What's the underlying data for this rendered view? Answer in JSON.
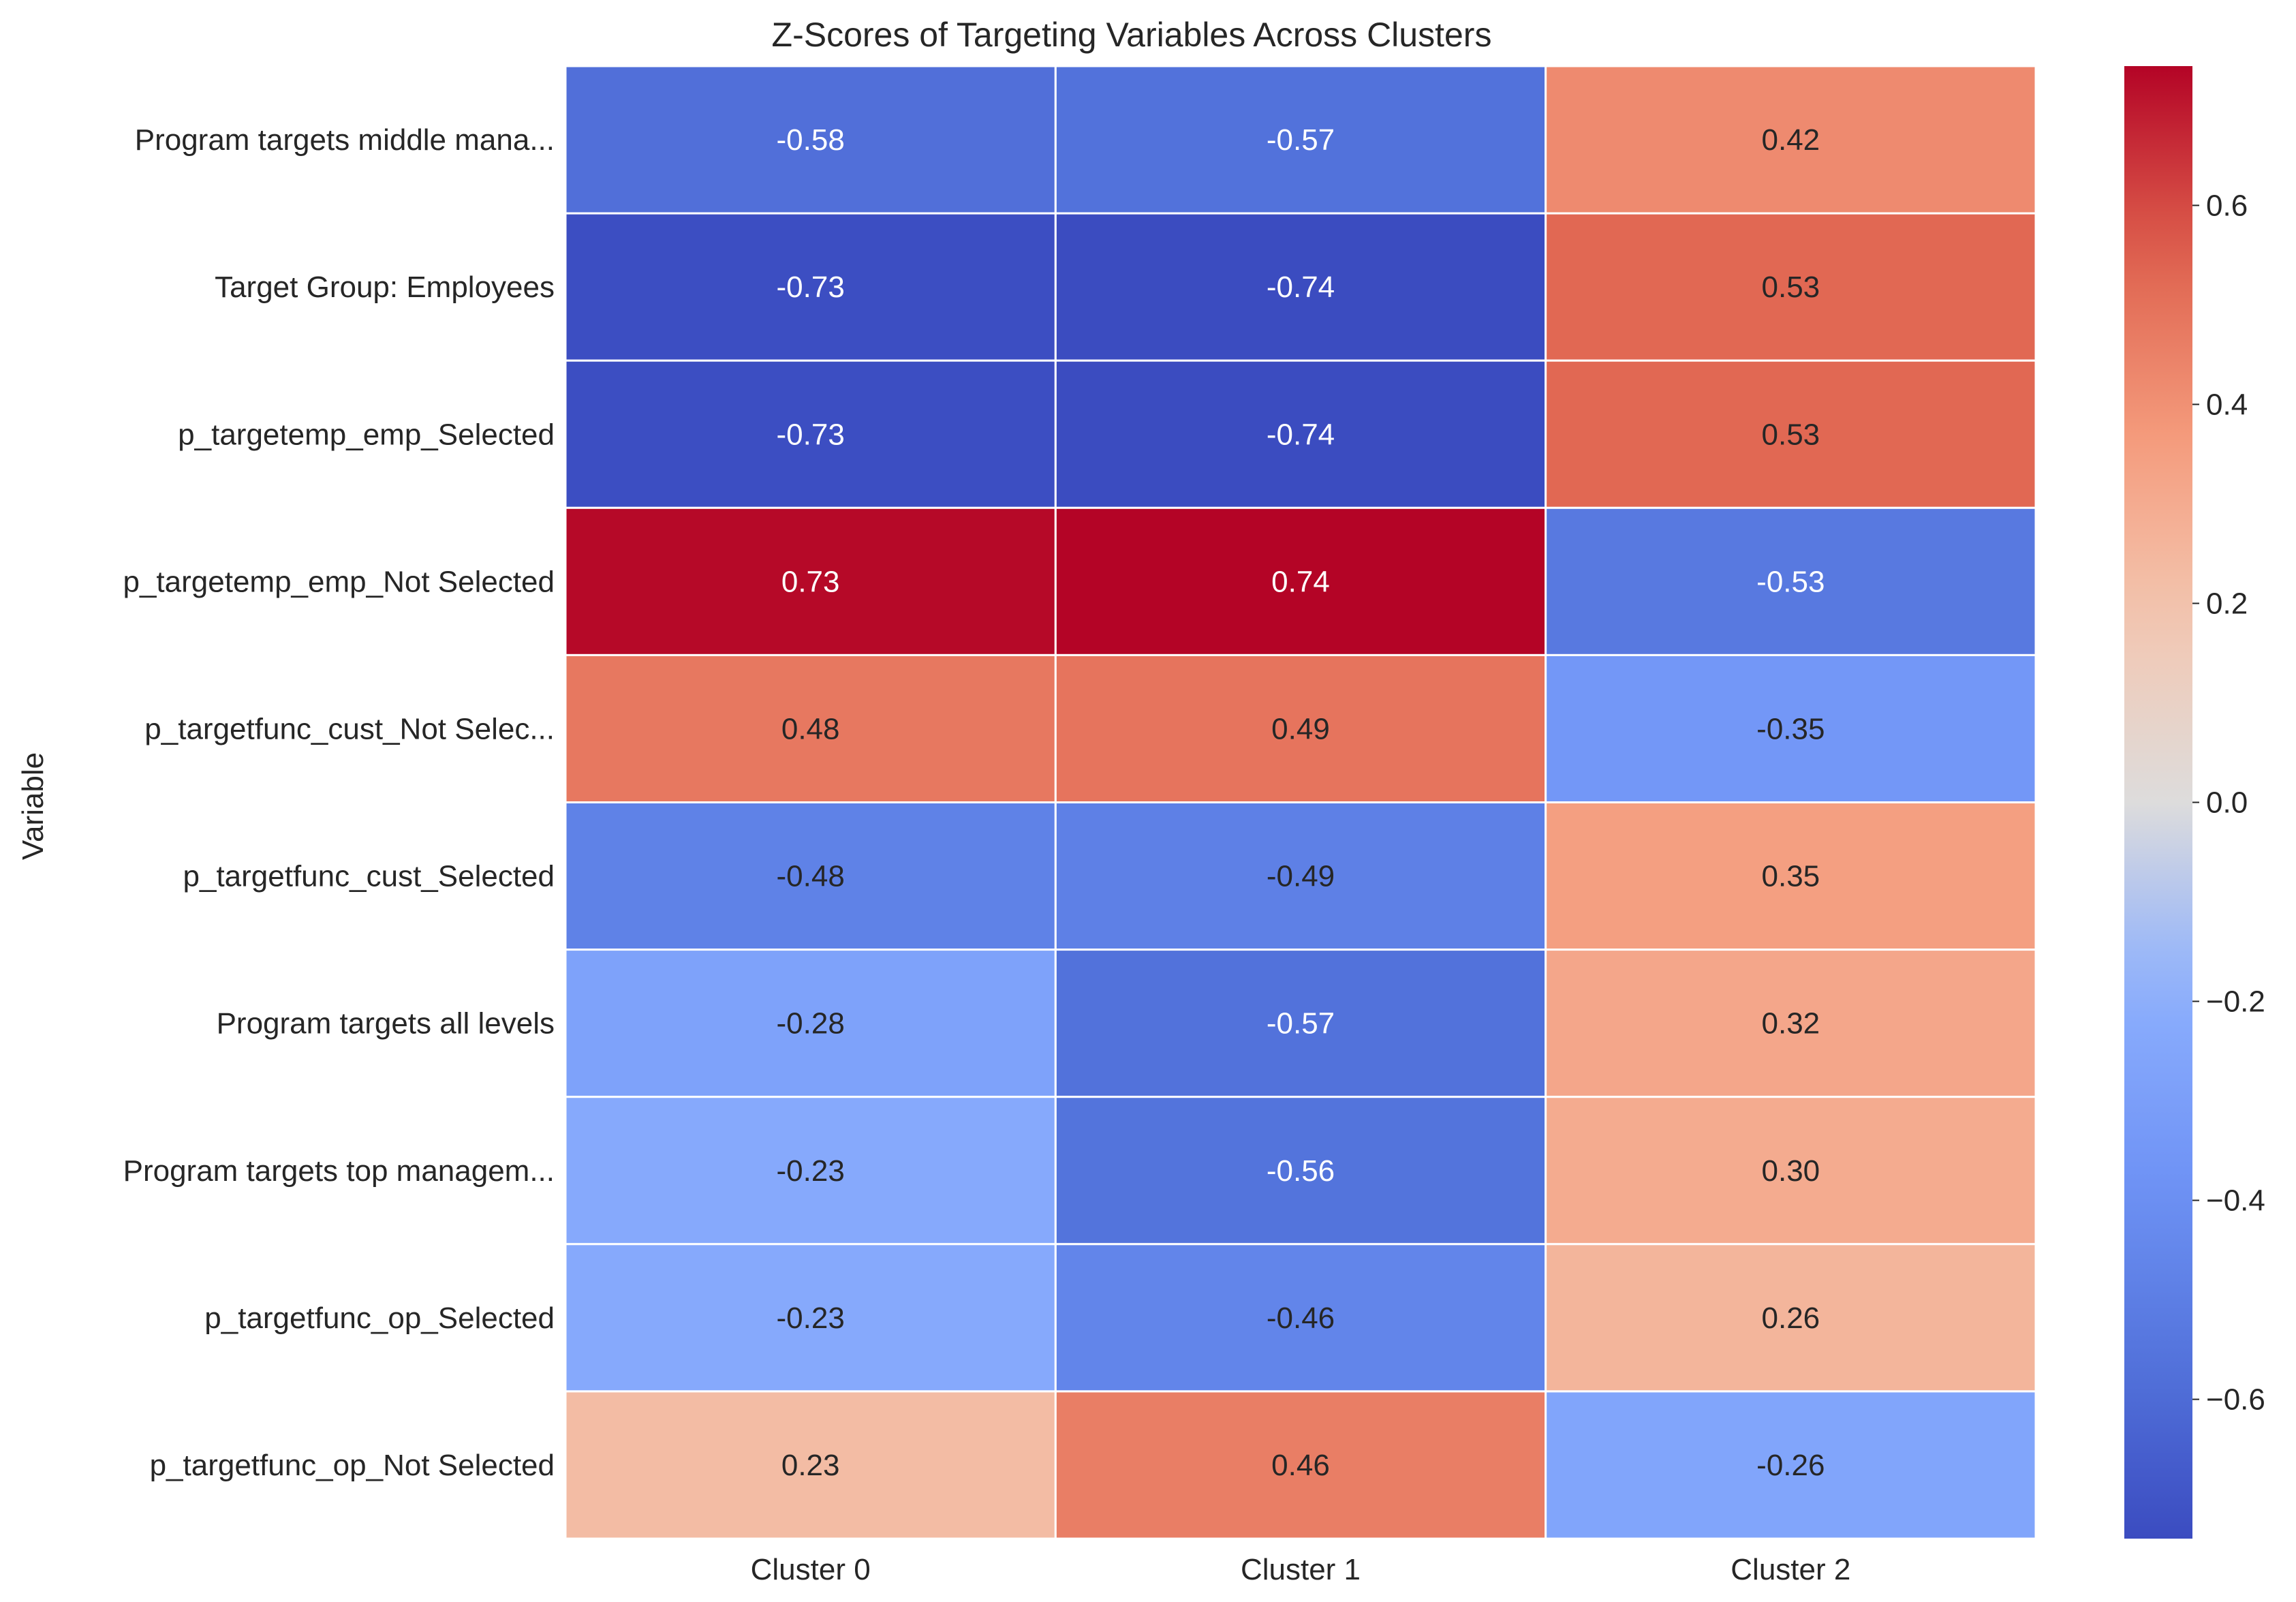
{
  "chart_data": {
    "type": "heatmap",
    "title": "Z-Scores of Targeting Variables Across Clusters",
    "xlabel": "",
    "ylabel": "Variable",
    "columns": [
      "Cluster 0",
      "Cluster 1",
      "Cluster 2"
    ],
    "rows": [
      "Program targets middle mana...",
      "Target Group: Employees",
      "p_targetemp_emp_Selected",
      "p_targetemp_emp_Not Selected",
      "p_targetfunc_cust_Not Selec...",
      "p_targetfunc_cust_Selected",
      "Program targets all levels",
      "Program targets top managem...",
      "p_targetfunc_op_Selected",
      "p_targetfunc_op_Not Selected"
    ],
    "values": [
      [
        -0.58,
        -0.57,
        0.42
      ],
      [
        -0.73,
        -0.74,
        0.53
      ],
      [
        -0.73,
        -0.74,
        0.53
      ],
      [
        0.73,
        0.74,
        -0.53
      ],
      [
        0.48,
        0.49,
        -0.35
      ],
      [
        -0.48,
        -0.49,
        0.35
      ],
      [
        -0.28,
        -0.57,
        0.32
      ],
      [
        -0.23,
        -0.56,
        0.3
      ],
      [
        -0.23,
        -0.46,
        0.26
      ],
      [
        0.23,
        0.46,
        -0.26
      ]
    ],
    "value_format": "0.00",
    "colormap": "coolwarm",
    "vmin": -0.74,
    "vmax": 0.74,
    "colorbar_ticks": [
      -0.6,
      -0.4,
      -0.2,
      0.0,
      0.2,
      0.4,
      0.6
    ],
    "colorbar_tick_labels": [
      "−0.6",
      "−0.4",
      "−0.2",
      "0.0",
      "0.2",
      "0.4",
      "0.6"
    ],
    "cell_border_color": "#ffffff"
  }
}
